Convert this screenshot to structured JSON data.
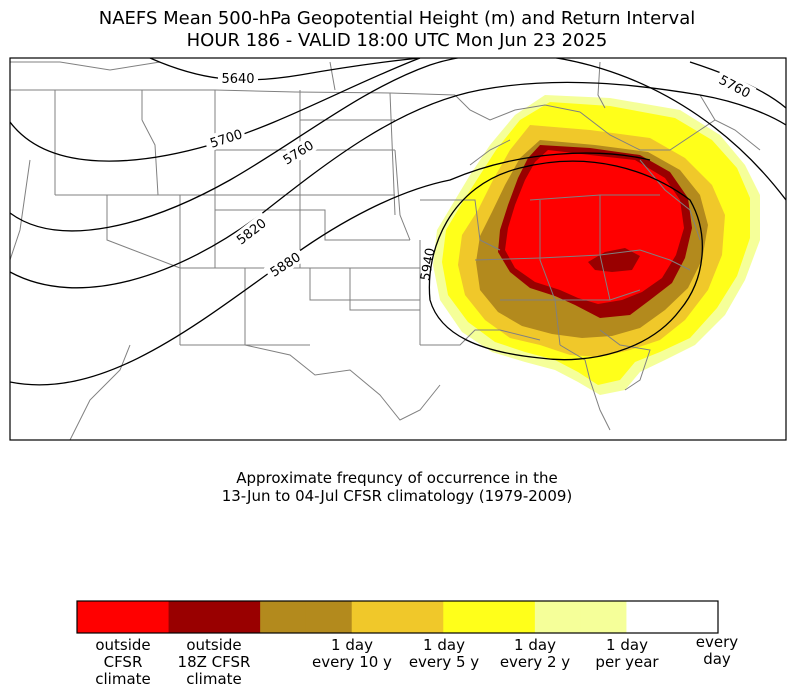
{
  "title_line1": "NAEFS Mean 500-hPa Geopotential Height (m) and Return Interval",
  "title_line2": "HOUR 186 - VALID 18:00 UTC Mon Jun 23 2025",
  "subtitle_line1": "Approximate frequncy of occurrence in the",
  "subtitle_line2": "13-Jun to 04-Jul CFSR climatology (1979-2009)",
  "contour_labels": [
    "5640",
    "5700",
    "5760",
    "5820",
    "5880",
    "5940",
    "5760"
  ],
  "colorbar": {
    "colors": [
      "#ff0000",
      "#ff0000",
      "#990000",
      "#990000",
      "#b38a1d",
      "#b38a1d",
      "#f0c82a",
      "#f0c82a",
      "#ffff1a",
      "#ffff1a",
      "#f5ff99",
      "#f5ff99",
      "#ffffff",
      "#ffffff"
    ],
    "labels": [
      [
        "outside",
        "CFSR",
        "climate"
      ],
      [
        "outside",
        "18Z CFSR",
        "climate"
      ],
      [
        "1 day",
        "every 10 y"
      ],
      [
        "1 day",
        "every 5 y"
      ],
      [
        "1 day",
        "every 2 y"
      ],
      [
        "1 day",
        "per year"
      ],
      [
        "every",
        "day"
      ]
    ]
  }
}
